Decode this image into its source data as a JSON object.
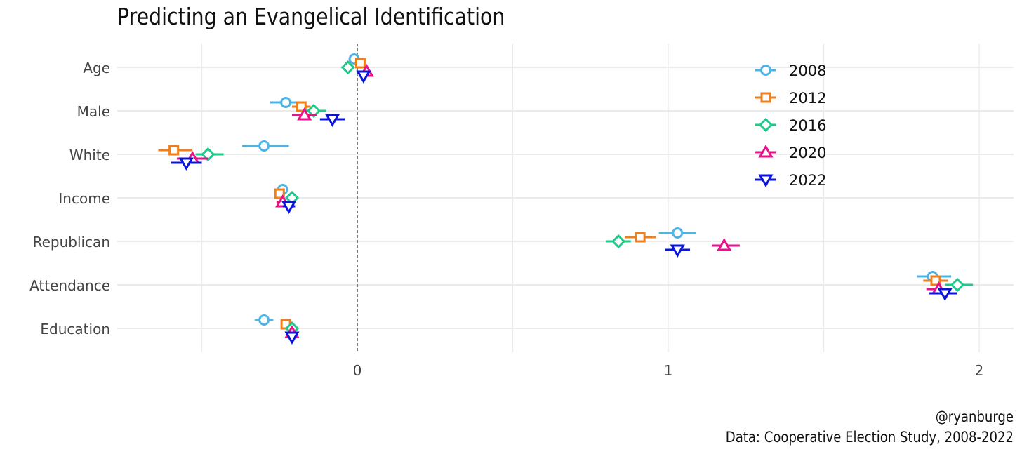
{
  "title": "Predicting an Evangelical Identification",
  "caption": {
    "line1": "@ryanburge",
    "line2": "Data: Cooperative Election Study, 2008-2022"
  },
  "chart_data": {
    "type": "scatter",
    "title": "Predicting an Evangelical Identification",
    "xlabel": "",
    "ylabel": "",
    "x_ticks": [
      0,
      1,
      2
    ],
    "xlim": [
      -0.77,
      2.12
    ],
    "categories": [
      "Age",
      "Male",
      "White",
      "Income",
      "Republican",
      "Attendance",
      "Education"
    ],
    "grid": true,
    "reference_line": {
      "x": 0,
      "style": "dashed"
    },
    "legend_position": "top-right",
    "series": [
      {
        "name": "2008",
        "color": "#4cb4e7",
        "marker": "circle",
        "points": [
          {
            "category": "Age",
            "estimate": -0.01,
            "low": -0.02,
            "high": 0.0
          },
          {
            "category": "Male",
            "estimate": -0.23,
            "low": -0.28,
            "high": -0.17
          },
          {
            "category": "White",
            "estimate": -0.3,
            "low": -0.37,
            "high": -0.22
          },
          {
            "category": "Income",
            "estimate": -0.24,
            "low": -0.25,
            "high": -0.23
          },
          {
            "category": "Republican",
            "estimate": 1.03,
            "low": 0.97,
            "high": 1.09
          },
          {
            "category": "Attendance",
            "estimate": 1.85,
            "low": 1.8,
            "high": 1.91
          },
          {
            "category": "Education",
            "estimate": -0.3,
            "low": -0.33,
            "high": -0.27
          }
        ]
      },
      {
        "name": "2012",
        "color": "#ee7f1b",
        "marker": "square",
        "points": [
          {
            "category": "Age",
            "estimate": 0.01,
            "low": 0.0,
            "high": 0.02
          },
          {
            "category": "Male",
            "estimate": -0.18,
            "low": -0.21,
            "high": -0.15
          },
          {
            "category": "White",
            "estimate": -0.59,
            "low": -0.64,
            "high": -0.53
          },
          {
            "category": "Income",
            "estimate": -0.25,
            "low": -0.26,
            "high": -0.24
          },
          {
            "category": "Republican",
            "estimate": 0.91,
            "low": 0.86,
            "high": 0.96
          },
          {
            "category": "Attendance",
            "estimate": 1.86,
            "low": 1.82,
            "high": 1.9
          },
          {
            "category": "Education",
            "estimate": -0.23,
            "low": -0.24,
            "high": -0.22
          }
        ]
      },
      {
        "name": "2016",
        "color": "#1fc98a",
        "marker": "diamond",
        "points": [
          {
            "category": "Age",
            "estimate": -0.03,
            "low": -0.04,
            "high": -0.02
          },
          {
            "category": "Male",
            "estimate": -0.14,
            "low": -0.17,
            "high": -0.1
          },
          {
            "category": "White",
            "estimate": -0.48,
            "low": -0.52,
            "high": -0.43
          },
          {
            "category": "Income",
            "estimate": -0.21,
            "low": -0.22,
            "high": -0.2
          },
          {
            "category": "Republican",
            "estimate": 0.84,
            "low": 0.8,
            "high": 0.88
          },
          {
            "category": "Attendance",
            "estimate": 1.93,
            "low": 1.89,
            "high": 1.98
          },
          {
            "category": "Education",
            "estimate": -0.21,
            "low": -0.22,
            "high": -0.2
          }
        ]
      },
      {
        "name": "2020",
        "color": "#e9128a",
        "marker": "triangle-up",
        "points": [
          {
            "category": "Age",
            "estimate": 0.03,
            "low": 0.02,
            "high": 0.04
          },
          {
            "category": "Male",
            "estimate": -0.17,
            "low": -0.21,
            "high": -0.13
          },
          {
            "category": "White",
            "estimate": -0.53,
            "low": -0.58,
            "high": -0.48
          },
          {
            "category": "Income",
            "estimate": -0.24,
            "low": -0.26,
            "high": -0.22
          },
          {
            "category": "Republican",
            "estimate": 1.18,
            "low": 1.14,
            "high": 1.23
          },
          {
            "category": "Attendance",
            "estimate": 1.87,
            "low": 1.83,
            "high": 1.91
          },
          {
            "category": "Education",
            "estimate": -0.21,
            "low": -0.23,
            "high": -0.19
          }
        ]
      },
      {
        "name": "2022",
        "color": "#0a15dc",
        "marker": "triangle-down",
        "points": [
          {
            "category": "Age",
            "estimate": 0.02,
            "low": 0.01,
            "high": 0.03
          },
          {
            "category": "Male",
            "estimate": -0.08,
            "low": -0.12,
            "high": -0.04
          },
          {
            "category": "White",
            "estimate": -0.55,
            "low": -0.6,
            "high": -0.5
          },
          {
            "category": "Income",
            "estimate": -0.22,
            "low": -0.24,
            "high": -0.2
          },
          {
            "category": "Republican",
            "estimate": 1.03,
            "low": 0.99,
            "high": 1.07
          },
          {
            "category": "Attendance",
            "estimate": 1.89,
            "low": 1.84,
            "high": 1.93
          },
          {
            "category": "Education",
            "estimate": -0.21,
            "low": -0.22,
            "high": -0.2
          }
        ]
      }
    ]
  }
}
